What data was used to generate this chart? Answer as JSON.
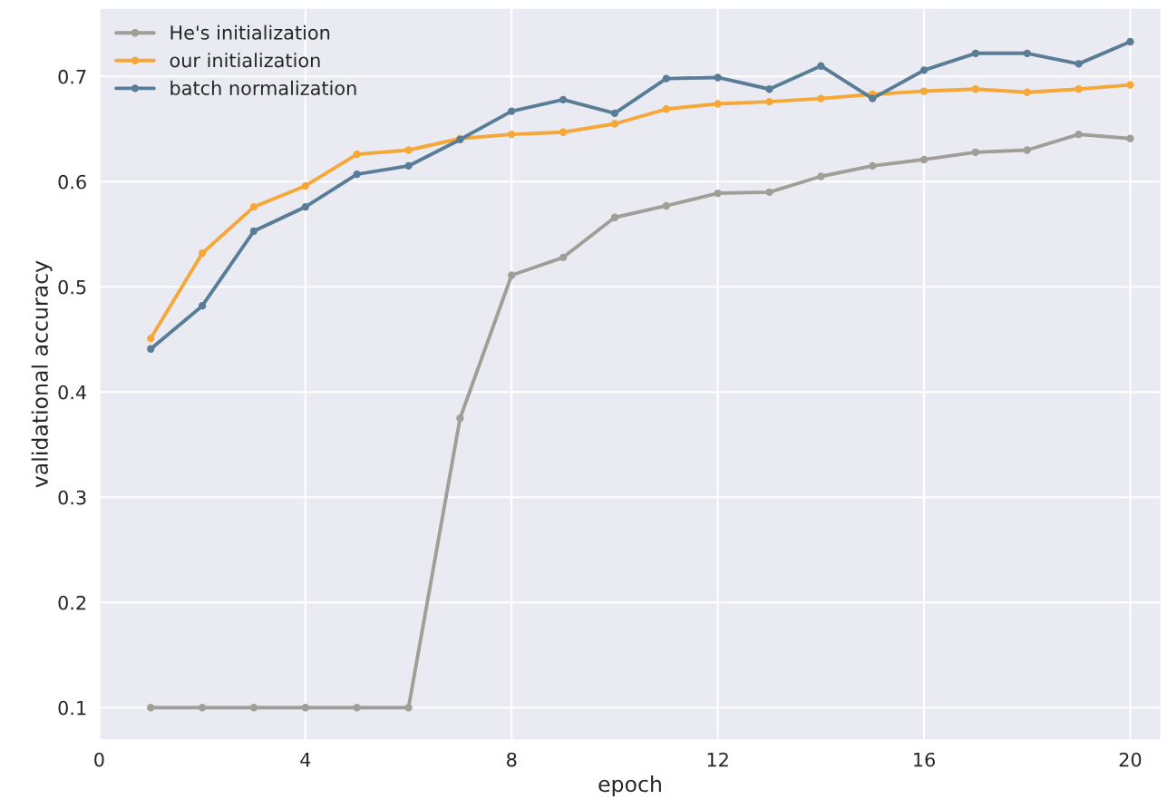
{
  "chart_data": {
    "type": "line",
    "xlabel": "epoch",
    "ylabel": "validational accuracy",
    "x": [
      1,
      2,
      3,
      4,
      5,
      6,
      7,
      8,
      9,
      10,
      11,
      12,
      13,
      14,
      15,
      16,
      17,
      18,
      19,
      20
    ],
    "series": [
      {
        "name": "He's initialization",
        "color": "#a19e97",
        "values": [
          0.1,
          0.1,
          0.1,
          0.1,
          0.1,
          0.1,
          0.375,
          0.511,
          0.528,
          0.566,
          0.577,
          0.589,
          0.59,
          0.605,
          0.615,
          0.621,
          0.628,
          0.63,
          0.645,
          0.641
        ]
      },
      {
        "name": "our initialization",
        "color": "#f5a838",
        "values": [
          0.451,
          0.532,
          0.576,
          0.596,
          0.626,
          0.63,
          0.641,
          0.645,
          0.647,
          0.655,
          0.669,
          0.674,
          0.676,
          0.679,
          0.683,
          0.686,
          0.688,
          0.685,
          0.688,
          0.692
        ]
      },
      {
        "name": "batch normalization",
        "color": "#5a7d97",
        "values": [
          0.441,
          0.482,
          0.553,
          0.576,
          0.607,
          0.615,
          0.64,
          0.667,
          0.678,
          0.665,
          0.698,
          0.699,
          0.688,
          0.71,
          0.679,
          0.706,
          0.722,
          0.722,
          0.712,
          0.733
        ]
      }
    ],
    "xlim": [
      0,
      20.6
    ],
    "xticks": [
      0,
      4,
      8,
      12,
      16,
      20
    ],
    "ylim": [
      0.069,
      0.765
    ],
    "yticks": [
      0.1,
      0.2,
      0.3,
      0.4,
      0.5,
      0.6,
      0.7
    ],
    "grid": true,
    "legend": "top left",
    "marker": "circle",
    "line_style": "solid"
  }
}
